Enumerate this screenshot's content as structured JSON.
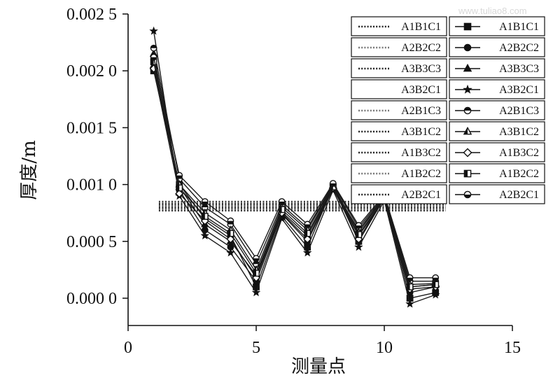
{
  "watermark": "www.tuliao8.com",
  "chart_data": {
    "type": "line",
    "title": "",
    "xlabel": "测量点",
    "ylabel": "厚度/m",
    "xlim": [
      0,
      15
    ],
    "ylim": [
      -0.00024,
      0.0025
    ],
    "x_ticks": [
      0,
      5,
      10,
      15
    ],
    "x_tick_labels": [
      "0",
      "5",
      "10",
      "15"
    ],
    "y_ticks": [
      0.0,
      0.0005,
      0.001,
      0.0015,
      0.002,
      0.0025
    ],
    "y_tick_labels": [
      "0.000 0",
      "0.000 5",
      "0.001 0",
      "0.001 5",
      "0.002 0",
      "0.002 5"
    ],
    "grid": false,
    "legend_position": "top-right",
    "x": [
      1,
      2,
      3,
      4,
      5,
      6,
      7,
      8,
      9,
      10,
      11,
      12
    ],
    "reference_series": [
      {
        "name": "A1B1C1",
        "y": 0.00085,
        "x_range": [
          1.2,
          12.4
        ]
      },
      {
        "name": "A2B2C2",
        "y": 0.00084,
        "x_range": [
          1.2,
          12.4
        ]
      },
      {
        "name": "A3B3C3",
        "y": 0.00083,
        "x_range": [
          1.2,
          12.4
        ]
      },
      {
        "name": "A3B2C1",
        "y": 0.00082,
        "x_range": [
          1.2,
          12.4
        ]
      },
      {
        "name": "A2B1C3",
        "y": 0.00081,
        "x_range": [
          1.2,
          12.4
        ]
      },
      {
        "name": "A3B1C2",
        "y": 0.0008,
        "x_range": [
          1.2,
          12.4
        ]
      },
      {
        "name": "A1B3C2",
        "y": 0.00079,
        "x_range": [
          1.2,
          12.4
        ]
      },
      {
        "name": "A1B2C2",
        "y": 0.00078,
        "x_range": [
          1.2,
          12.4
        ]
      },
      {
        "name": "A2B2C1",
        "y": 0.00077,
        "x_range": [
          1.2,
          12.4
        ]
      }
    ],
    "series": [
      {
        "name": "A1B1C1",
        "marker": "square",
        "values": [
          0.002,
          0.001,
          0.0007,
          0.00055,
          0.0001,
          0.00072,
          0.00045,
          0.00098,
          0.0005,
          0.00088,
          0.0,
          5e-05
        ]
      },
      {
        "name": "A2B2C2",
        "marker": "circle",
        "values": [
          0.0021,
          0.00095,
          0.0006,
          0.00045,
          0.00015,
          0.00074,
          0.0005,
          0.00096,
          0.00055,
          0.00087,
          5e-05,
          0.0001
        ]
      },
      {
        "name": "A3B3C3",
        "marker": "triangle",
        "values": [
          0.00215,
          0.00098,
          0.00065,
          0.0005,
          0.0002,
          0.00076,
          0.00055,
          0.00097,
          0.0006,
          0.00089,
          0.0001,
          0.00012
        ]
      },
      {
        "name": "A3B2C1",
        "marker": "star",
        "values": [
          0.00235,
          0.0009,
          0.00055,
          0.0004,
          5e-05,
          0.0007,
          0.0004,
          0.00095,
          0.00045,
          0.00086,
          -5e-05,
          3e-05
        ]
      },
      {
        "name": "A2B1C3",
        "marker": "half-circle",
        "values": [
          0.0022,
          0.00105,
          0.0008,
          0.00065,
          0.0003,
          0.00082,
          0.00062,
          0.001,
          0.00062,
          0.0009,
          0.00015,
          0.00015
        ]
      },
      {
        "name": "A3B1C2",
        "marker": "half-triangle",
        "values": [
          0.00205,
          0.001,
          0.00075,
          0.0006,
          0.00025,
          0.0008,
          0.0006,
          0.00099,
          0.00058,
          0.00089,
          0.00012,
          0.00013
        ]
      },
      {
        "name": "A1B3C2",
        "marker": "diamond",
        "values": [
          0.00202,
          0.00092,
          0.00068,
          0.00052,
          0.00018,
          0.00075,
          0.00052,
          0.00097,
          0.00052,
          0.00088,
          8e-05,
          0.0001
        ]
      },
      {
        "name": "A1B2C2",
        "marker": "half-square",
        "values": [
          0.00208,
          0.00097,
          0.00072,
          0.00057,
          0.00022,
          0.00078,
          0.00057,
          0.00098,
          0.00056,
          0.00088,
          0.0001,
          0.00012
        ]
      },
      {
        "name": "A2B2C1",
        "marker": "circle-open",
        "values": [
          0.00212,
          0.00108,
          0.00085,
          0.00068,
          0.00035,
          0.00085,
          0.00065,
          0.00101,
          0.00064,
          0.00091,
          0.00018,
          0.00018
        ]
      }
    ]
  }
}
